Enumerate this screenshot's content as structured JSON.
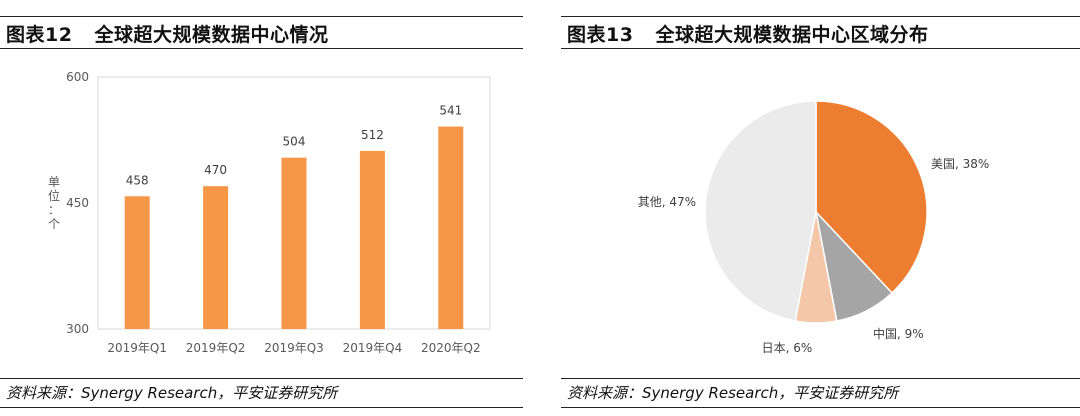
{
  "left": {
    "figure_label": "图表12",
    "title": "全球超大规模数据中心情况",
    "source": "资料来源：Synergy Research，平安证券研究所"
  },
  "right": {
    "figure_label": "图表13",
    "title": "全球超大规模数据中心区域分布",
    "source": "资料来源：Synergy Research，平安证券研究所"
  },
  "colors": {
    "bar": "#F79646",
    "us": "#ED7D31",
    "china": "#A5A5A5",
    "japan": "#F4C7A8",
    "other": "#EBEBEB",
    "rule": "#222222",
    "axis_text": "#595959"
  },
  "chart_data": [
    {
      "type": "bar",
      "title": "",
      "ylabel": "单位：个",
      "categories": [
        "2019年Q1",
        "2019年Q2",
        "2019年Q3",
        "2019年Q4",
        "2020年Q2"
      ],
      "values": [
        458,
        470,
        504,
        512,
        541
      ],
      "ylim": [
        300,
        600
      ],
      "yticks": [
        300,
        450,
        600
      ],
      "grid": false,
      "data_labels": true
    },
    {
      "type": "pie",
      "title": "",
      "slices": [
        {
          "name": "美国",
          "value": 38,
          "label": "美国, 38%"
        },
        {
          "name": "中国",
          "value": 9,
          "label": "中国, 9%"
        },
        {
          "name": "日本",
          "value": 6,
          "label": "日本, 6%"
        },
        {
          "name": "其他",
          "value": 47,
          "label": "其他, 47%"
        }
      ]
    }
  ]
}
